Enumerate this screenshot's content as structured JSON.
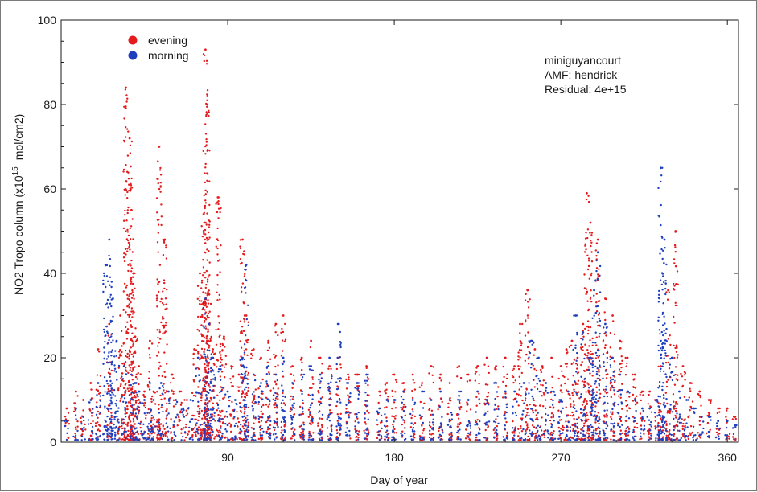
{
  "chart_data": {
    "type": "scatter",
    "title": "",
    "xlabel": "Day of year",
    "ylabel_main": "NO2 Tropo column (x10",
    "ylabel_exp": "15",
    "ylabel_unit": "mol/cm2)",
    "xlim": [
      0,
      366
    ],
    "ylim": [
      0,
      100
    ],
    "xticks": [
      90,
      180,
      270,
      360
    ],
    "yticks": [
      0,
      20,
      40,
      60,
      80,
      100
    ],
    "grid": false,
    "legend_position": "top-left",
    "info_lines": [
      "miniguyancourt",
      "AMF: hendrick",
      "Residual: 4e+15"
    ],
    "series": [
      {
        "name": "evening",
        "color": "#e41a1c",
        "x": [
          3,
          8,
          12,
          16,
          20,
          26,
          32,
          35,
          37,
          38,
          39,
          40,
          42,
          45,
          48,
          50,
          53,
          56,
          60,
          64,
          68,
          72,
          75,
          77,
          78,
          79,
          80,
          82,
          85,
          88,
          92,
          96,
          98,
          100,
          104,
          108,
          112,
          116,
          120,
          125,
          130,
          135,
          140,
          145,
          150,
          155,
          160,
          165,
          172,
          176,
          180,
          185,
          190,
          195,
          200,
          205,
          210,
          215,
          220,
          225,
          230,
          235,
          240,
          245,
          248,
          252,
          256,
          260,
          265,
          270,
          273,
          276,
          279,
          282,
          284,
          286,
          290,
          294,
          298,
          302,
          306,
          310,
          314,
          318,
          322,
          324,
          328,
          332,
          336,
          340,
          345,
          350,
          355,
          360,
          364
        ],
        "y": [
          8,
          12,
          10,
          14,
          22,
          28,
          30,
          84,
          72,
          55,
          40,
          25,
          18,
          12,
          24,
          12,
          70,
          48,
          16,
          12,
          10,
          22,
          40,
          54,
          93,
          80,
          35,
          22,
          58,
          25,
          18,
          16,
          48,
          30,
          22,
          20,
          24,
          28,
          30,
          18,
          20,
          24,
          20,
          18,
          20,
          16,
          16,
          18,
          12,
          14,
          16,
          14,
          16,
          14,
          18,
          16,
          14,
          18,
          16,
          18,
          20,
          18,
          20,
          18,
          28,
          36,
          22,
          18,
          20,
          18,
          22,
          24,
          20,
          28,
          59,
          52,
          48,
          34,
          30,
          24,
          20,
          16,
          12,
          12,
          10,
          18,
          36,
          50,
          18,
          14,
          12,
          10,
          8,
          8,
          6
        ]
      },
      {
        "name": "morning",
        "color": "#1f3fbf",
        "x": [
          3,
          8,
          12,
          16,
          20,
          24,
          26,
          28,
          30,
          34,
          38,
          40,
          42,
          45,
          48,
          50,
          54,
          58,
          62,
          66,
          70,
          74,
          78,
          80,
          82,
          86,
          90,
          94,
          98,
          100,
          104,
          108,
          112,
          116,
          120,
          125,
          130,
          135,
          140,
          145,
          150,
          155,
          160,
          165,
          172,
          176,
          180,
          185,
          190,
          195,
          200,
          205,
          210,
          215,
          220,
          225,
          230,
          235,
          240,
          245,
          250,
          254,
          258,
          262,
          266,
          270,
          274,
          278,
          282,
          286,
          288,
          290,
          294,
          298,
          302,
          306,
          310,
          314,
          318,
          322,
          324,
          326,
          330,
          334,
          338,
          342,
          346,
          350,
          355,
          360,
          364
        ],
        "y": [
          5,
          8,
          6,
          10,
          14,
          42,
          48,
          34,
          24,
          18,
          16,
          14,
          12,
          10,
          14,
          10,
          14,
          12,
          10,
          8,
          10,
          20,
          34,
          28,
          20,
          18,
          12,
          10,
          20,
          42,
          16,
          14,
          18,
          16,
          20,
          14,
          16,
          18,
          16,
          20,
          28,
          14,
          14,
          16,
          8,
          10,
          10,
          12,
          10,
          12,
          10,
          12,
          10,
          12,
          10,
          12,
          10,
          14,
          12,
          12,
          14,
          24,
          20,
          14,
          12,
          10,
          12,
          30,
          26,
          20,
          36,
          45,
          28,
          20,
          16,
          12,
          10,
          8,
          8,
          10,
          65,
          48,
          20,
          12,
          10,
          8,
          6,
          6,
          5,
          5,
          4
        ]
      }
    ]
  }
}
